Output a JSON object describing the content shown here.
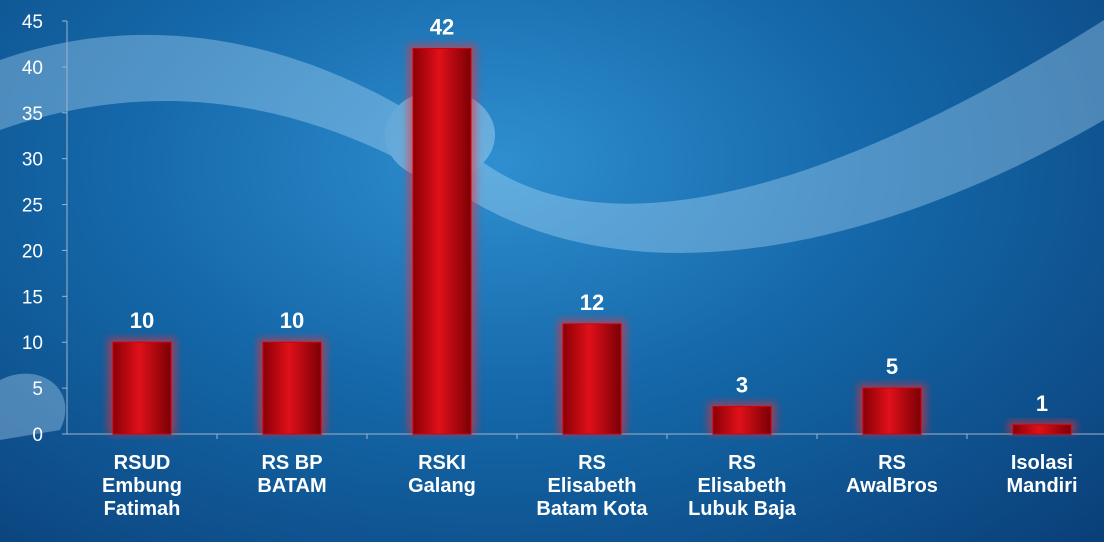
{
  "chart_data": {
    "type": "bar",
    "categories": [
      "RSUD\nEmbung\nFatimah",
      "RS BP\nBATAM",
      "RSKI\nGalang",
      "RS\nElisabeth\nBatam Kota",
      "RS\nElisabeth\nLubuk Baja",
      "RS\nAwalBros",
      "Isolasi\nMandiri"
    ],
    "values": [
      10,
      10,
      42,
      12,
      3,
      5,
      1
    ],
    "color": "#d0000a",
    "ylim": [
      0,
      45
    ],
    "yticks": [
      0,
      5,
      10,
      15,
      20,
      25,
      30,
      35,
      40,
      45
    ],
    "grid": false
  }
}
